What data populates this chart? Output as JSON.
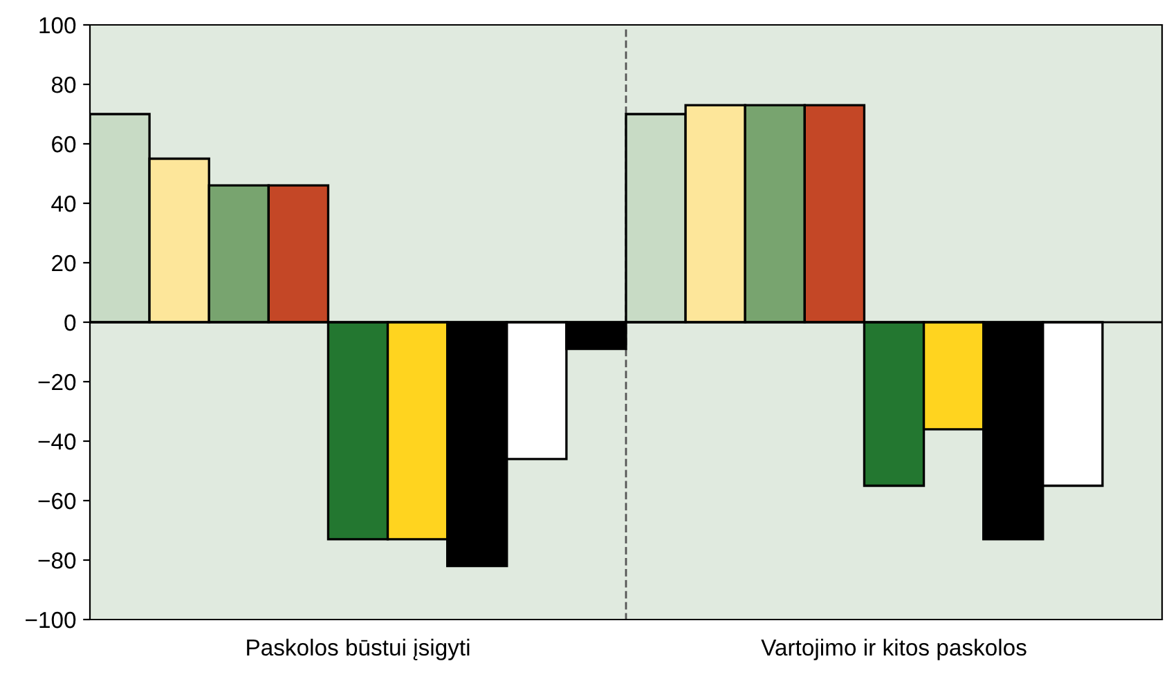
{
  "chart_data": {
    "type": "bar",
    "categories": [
      "Paskolos būstui įsigyti",
      "Vartojimo ir kitos paskolos"
    ],
    "series": [
      {
        "color": "#c8dbc5",
        "values": [
          70,
          70
        ]
      },
      {
        "color": "#fde69a",
        "values": [
          55,
          73
        ]
      },
      {
        "color": "#78a46f",
        "values": [
          46,
          73
        ]
      },
      {
        "color": "#c44726",
        "values": [
          46,
          73
        ]
      },
      {
        "color": "#237730",
        "values": [
          -73,
          -55
        ]
      },
      {
        "color": "#ffd41f",
        "values": [
          -73,
          -36
        ]
      },
      {
        "color": "#000000",
        "values": [
          -82,
          -73
        ]
      },
      {
        "color": "#ffffff",
        "values": [
          -46,
          -55
        ]
      },
      {
        "color": "#000000",
        "values": [
          -9,
          null
        ]
      }
    ],
    "ylim": [
      -100,
      100
    ],
    "yticks": [
      {
        "value": -100,
        "label": "−100"
      },
      {
        "value": -80,
        "label": "−80"
      },
      {
        "value": -60,
        "label": "−60"
      },
      {
        "value": -40,
        "label": "−40"
      },
      {
        "value": -20,
        "label": "−20"
      },
      0,
      20,
      40,
      60,
      80,
      100
    ],
    "legend": false
  }
}
